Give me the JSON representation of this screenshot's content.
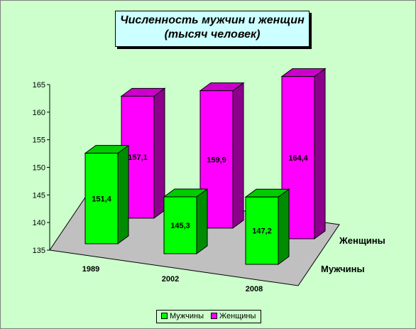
{
  "title_line1": "Численность мужчин и женщин",
  "title_line2": "(тысяч человек)",
  "colors": {
    "background": "#ccffcc",
    "title_bg": "#ccffff",
    "floor": "#c0c0c0",
    "men": "#00ff00",
    "women": "#ff00ff"
  },
  "chart_data": {
    "type": "bar",
    "categories": [
      "1989",
      "2002",
      "2008"
    ],
    "series": [
      {
        "name": "Мужчины",
        "values": [
          151.4,
          145.3,
          147.2
        ]
      },
      {
        "name": "Женщины",
        "values": [
          157.1,
          159.9,
          164.4
        ]
      }
    ],
    "value_labels": {
      "Мужчины": [
        "151,4",
        "145,3",
        "147,2"
      ],
      "Женщины": [
        "157,1",
        "159,9",
        "164,4"
      ]
    },
    "yticks": [
      "135",
      "140",
      "145",
      "150",
      "155",
      "160",
      "165"
    ],
    "ylim": [
      135,
      165
    ],
    "depth_labels": [
      "Женщины",
      "Мужчины"
    ],
    "legend": [
      "Мужчины",
      "Женщины"
    ],
    "legend_position": "bottom",
    "grid": false
  }
}
